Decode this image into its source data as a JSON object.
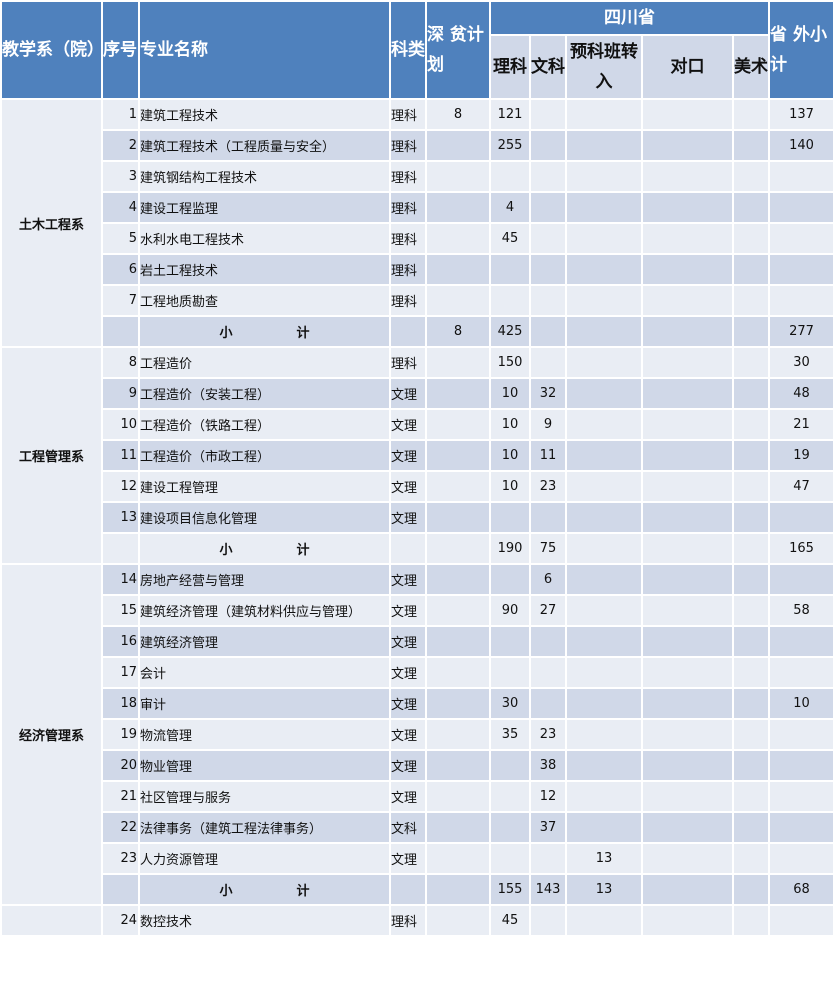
{
  "header": {
    "dept": "教学系（院）",
    "seq": "序号",
    "name": "专业名称",
    "type": "科类",
    "poverty": "深 贫计划",
    "province": "四川省",
    "li": "理科",
    "wen": "文科",
    "yuke": "预科班转入",
    "duikou": "对口",
    "meishu": "美术",
    "outside": "省 外小计"
  },
  "subtotal_label": "小 计",
  "groups": [
    {
      "dept": "土木工程系",
      "rows": [
        [
          "1",
          "建筑工程技术",
          "理科",
          "8",
          "121",
          "",
          "",
          "",
          "",
          "137"
        ],
        [
          "2",
          "建筑工程技术（工程质量与安全）",
          "理科",
          "",
          "255",
          "",
          "",
          "",
          "",
          "140"
        ],
        [
          "3",
          "建筑钢结构工程技术",
          "理科",
          "",
          "",
          "",
          "",
          "",
          "",
          ""
        ],
        [
          "4",
          "建设工程监理",
          "理科",
          "",
          "4",
          "",
          "",
          "",
          "",
          ""
        ],
        [
          "5",
          "水利水电工程技术",
          "理科",
          "",
          "45",
          "",
          "",
          "",
          "",
          ""
        ],
        [
          "6",
          "岩土工程技术",
          "理科",
          "",
          "",
          "",
          "",
          "",
          "",
          ""
        ],
        [
          "7",
          "工程地质勘查",
          "理科",
          "",
          "",
          "",
          "",
          "",
          "",
          ""
        ]
      ],
      "subtotal": [
        "",
        "8",
        "425",
        "",
        "",
        "",
        "",
        "277"
      ]
    },
    {
      "dept": "工程管理系",
      "rows": [
        [
          "8",
          "工程造价",
          "理科",
          "",
          "150",
          "",
          "",
          "",
          "",
          "30"
        ],
        [
          "9",
          "工程造价（安装工程）",
          "文理",
          "",
          "10",
          "32",
          "",
          "",
          "",
          "48"
        ],
        [
          "10",
          "工程造价（铁路工程）",
          "文理",
          "",
          "10",
          "9",
          "",
          "",
          "",
          "21"
        ],
        [
          "11",
          "工程造价（市政工程）",
          "文理",
          "",
          "10",
          "11",
          "",
          "",
          "",
          "19"
        ],
        [
          "12",
          "建设工程管理",
          "文理",
          "",
          "10",
          "23",
          "",
          "",
          "",
          "47"
        ],
        [
          "13",
          "建设项目信息化管理",
          "文理",
          "",
          "",
          "",
          "",
          "",
          "",
          ""
        ]
      ],
      "subtotal": [
        "",
        "",
        "190",
        "75",
        "",
        "",
        "",
        "165"
      ]
    },
    {
      "dept": "经济管理系",
      "rows": [
        [
          "14",
          "房地产经营与管理",
          "文理",
          "",
          "",
          "6",
          "",
          "",
          "",
          ""
        ],
        [
          "15",
          "建筑经济管理（建筑材料供应与管理）",
          "文理",
          "",
          "90",
          "27",
          "",
          "",
          "",
          "58"
        ],
        [
          "16",
          "建筑经济管理",
          "文理",
          "",
          "",
          "",
          "",
          "",
          "",
          ""
        ],
        [
          "17",
          "会计",
          "文理",
          "",
          "",
          "",
          "",
          "",
          "",
          ""
        ],
        [
          "18",
          "审计",
          "文理",
          "",
          "30",
          "",
          "",
          "",
          "",
          "10"
        ],
        [
          "19",
          "物流管理",
          "文理",
          "",
          "35",
          "23",
          "",
          "",
          "",
          ""
        ],
        [
          "20",
          "物业管理",
          "文理",
          "",
          "",
          "38",
          "",
          "",
          "",
          ""
        ],
        [
          "21",
          "社区管理与服务",
          "文理",
          "",
          "",
          "12",
          "",
          "",
          "",
          ""
        ],
        [
          "22",
          "法律事务（建筑工程法律事务）",
          "文科",
          "",
          "",
          "37",
          "",
          "",
          "",
          ""
        ],
        [
          "23",
          "人力资源管理",
          "文理",
          "",
          "",
          "",
          "13",
          "",
          "",
          ""
        ]
      ],
      "subtotal": [
        "",
        "",
        "155",
        "143",
        "13",
        "",
        "",
        "68"
      ]
    },
    {
      "dept": "",
      "rows": [
        [
          "24",
          "数控技术",
          "理科",
          "",
          "45",
          "",
          "",
          "",
          "",
          ""
        ]
      ]
    }
  ]
}
